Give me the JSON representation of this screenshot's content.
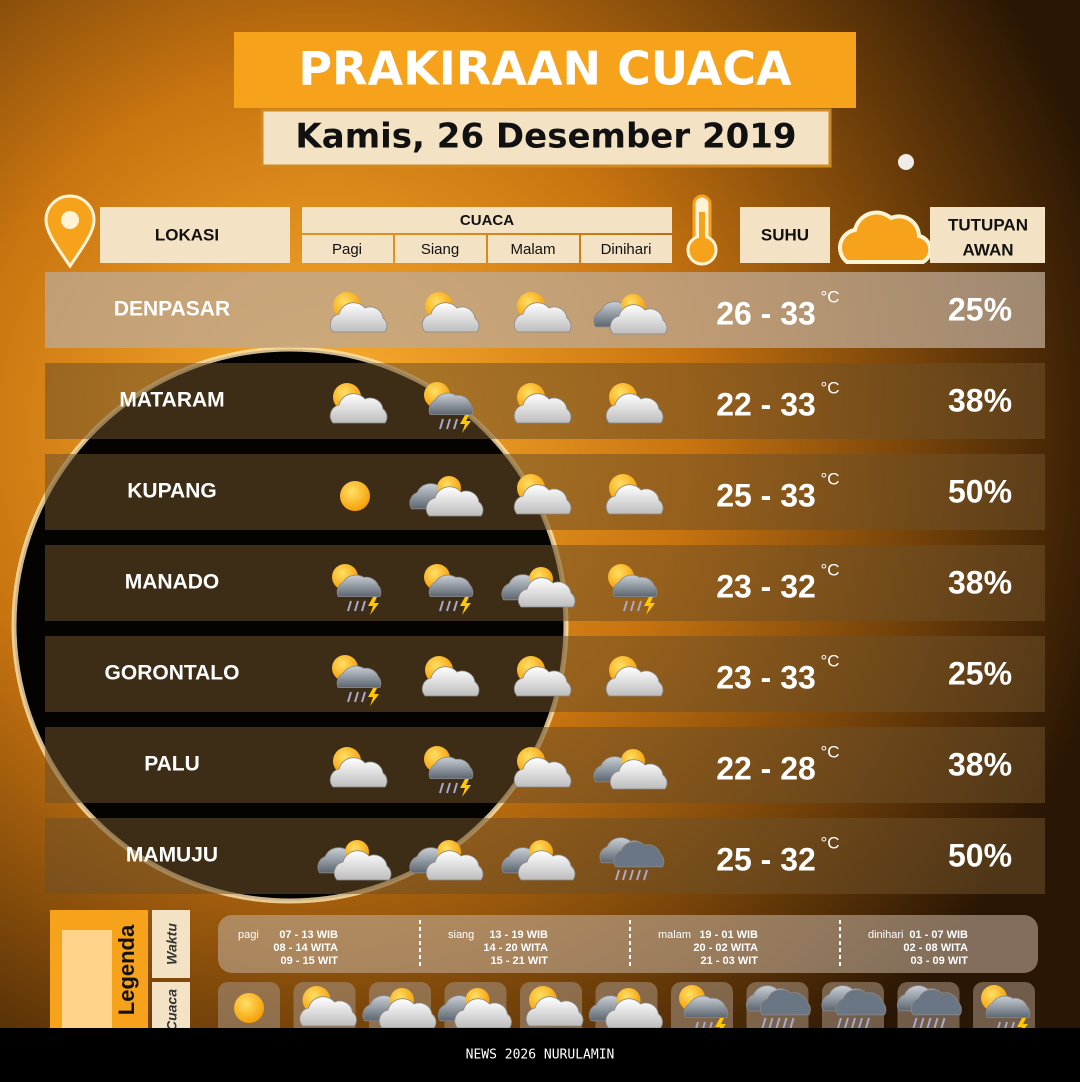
{
  "header": {
    "title": "PRAKIRAAN CUACA",
    "date": "Kamis, 26 Desember 2019"
  },
  "columns": {
    "location": "LOKASI",
    "weather": "CUACA",
    "periods": [
      "Pagi",
      "Siang",
      "Malam",
      "Dinihari"
    ],
    "temperature": "SUHU",
    "cloud_cover": [
      "TUTUPAN",
      "AWAN"
    ]
  },
  "temp_unit": "°C",
  "rows": [
    {
      "name": "DENPASAR",
      "temp": "26 - 33",
      "cloud": "25%"
    },
    {
      "name": "MATARAM",
      "temp": "22 - 33",
      "cloud": "38%"
    },
    {
      "name": "KUPANG",
      "temp": "25 - 33",
      "cloud": "50%"
    },
    {
      "name": "MANADO",
      "temp": "23 - 32",
      "cloud": "38%"
    },
    {
      "name": "GORONTALO",
      "temp": "23 - 33",
      "cloud": "25%"
    },
    {
      "name": "PALU",
      "temp": "22 - 28",
      "cloud": "38%"
    },
    {
      "name": "MAMUJU",
      "temp": "25 - 32",
      "cloud": "50%"
    }
  ],
  "legend": {
    "title": "Legenda",
    "tabs": [
      "Waktu",
      "Cuaca"
    ],
    "time": [
      {
        "period": "pagi",
        "lines": [
          "07 - 13 WIB",
          "08 - 14 WITA",
          "09 - 15 WIT"
        ]
      },
      {
        "period": "siang",
        "lines": [
          "13 - 19 WIB",
          "14 - 20 WITA",
          "15 - 21 WIT"
        ]
      },
      {
        "period": "malam",
        "lines": [
          "19 - 01 WIB",
          "20 - 02 WITA",
          "21 - 03 WIT"
        ]
      },
      {
        "period": "dinihari",
        "lines": [
          "01 - 07 WIB",
          "02 - 08 WITA",
          "03 - 09 WIT"
        ]
      }
    ]
  },
  "footer": "NEWS 2026 NURULAMIN"
}
